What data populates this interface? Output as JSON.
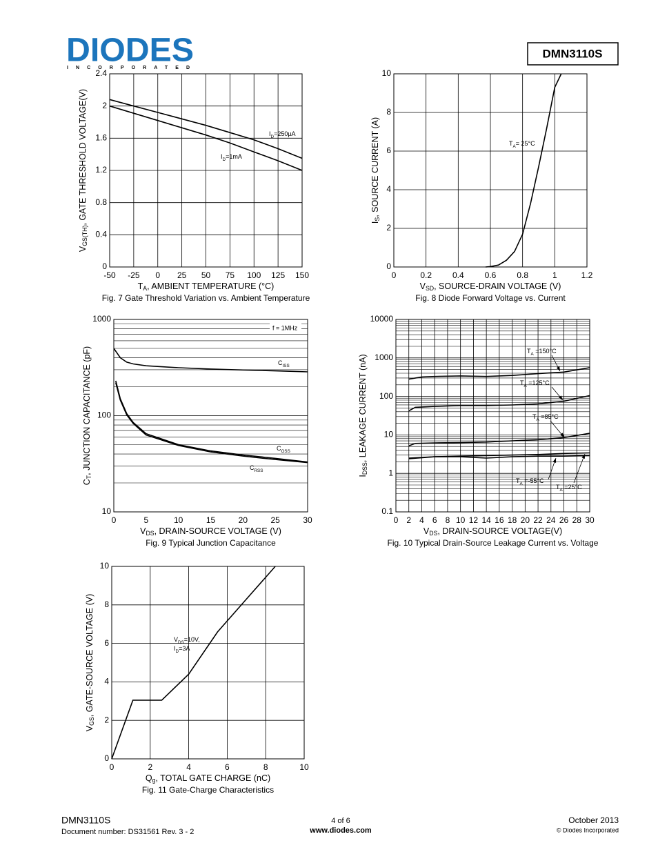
{
  "header": {
    "logo": "DIODES",
    "logo_sub": "INCORPORATED",
    "part": "DMN3110S"
  },
  "footer": {
    "part": "DMN3110S",
    "doc": "Document number: DS31561 Rev. 3 - 2",
    "page": "4 of 6",
    "url": "www.diodes.com",
    "date": "October 2013",
    "copyright": "© Diodes Incorporated"
  },
  "chart_data": [
    {
      "type": "line",
      "caption": "Fig. 7 Gate Threshold Variation vs. Ambient Temperature",
      "xlabel": [
        "T",
        "A",
        ", AMBIENT TEMPERATURE (°C)"
      ],
      "ylabel": [
        "V",
        "GS(TH)",
        ", GATE THRESHOLD VOLTAGE(V)"
      ],
      "xlim": [
        -50,
        150
      ],
      "xticks": [
        -50,
        -25,
        0,
        25,
        50,
        75,
        100,
        125,
        150
      ],
      "ylim": [
        0,
        2.4
      ],
      "yticks": [
        0,
        0.4,
        0.8,
        1.2,
        1.6,
        2,
        2.4
      ],
      "xgrid": true,
      "ygrid": true,
      "series": [
        {
          "name": [
            "I",
            "D",
            "=250µA"
          ],
          "color": "#000000",
          "x": [
            -50,
            -25,
            0,
            25,
            50,
            75,
            100,
            125,
            150
          ],
          "values": [
            2.08,
            2.0,
            1.92,
            1.84,
            1.76,
            1.67,
            1.58,
            1.47,
            1.35
          ]
        },
        {
          "name": [
            "I",
            "D",
            "=1mA"
          ],
          "color": "#000000",
          "x": [
            -50,
            -25,
            0,
            25,
            50,
            75,
            100,
            125,
            150
          ],
          "values": [
            2.0,
            1.91,
            1.82,
            1.73,
            1.64,
            1.54,
            1.43,
            1.32,
            1.2
          ]
        }
      ]
    },
    {
      "type": "line",
      "caption": "Fig. 8 Diode Forward Voltage vs. Current",
      "xlabel": [
        "V",
        "SD",
        ", SOURCE-DRAIN VOLTAGE (V)"
      ],
      "ylabel": [
        "I",
        "S",
        ", SOURCE CURRENT (A)"
      ],
      "xlim": [
        0,
        1.2
      ],
      "xticks": [
        0,
        0.2,
        0.4,
        0.6,
        0.8,
        1,
        1.2
      ],
      "ylim": [
        0,
        10
      ],
      "yticks": [
        0,
        2,
        4,
        6,
        8,
        10
      ],
      "xgrid": true,
      "ygrid": true,
      "series": [
        {
          "name": [
            "T",
            "A",
            "= 25°C"
          ],
          "color": "#000000",
          "x": [
            0.57,
            0.6,
            0.65,
            0.7,
            0.75,
            0.8,
            0.85,
            0.9,
            0.95,
            1.0,
            1.04
          ],
          "values": [
            0,
            0.02,
            0.1,
            0.35,
            0.8,
            1.7,
            3.3,
            5.2,
            7.2,
            9.3,
            10
          ]
        }
      ]
    },
    {
      "type": "line",
      "caption": "Fig. 9 Typical Junction Capacitance",
      "annotation": "f = 1MHz",
      "xlabel": [
        "V",
        "DS",
        ", DRAIN-SOURCE VOLTAGE (V)"
      ],
      "ylabel": [
        "C",
        "T",
        ", JUNCTION CAPACITANCE (pF)"
      ],
      "xlim": [
        0,
        30
      ],
      "xticks": [
        0,
        5,
        10,
        15,
        20,
        25,
        30
      ],
      "ylim": [
        10,
        1000
      ],
      "yticks": [
        10,
        100,
        1000
      ],
      "yscale": "log",
      "xgrid": false,
      "ygrid": true,
      "series": [
        {
          "name": [
            "C",
            "ISS"
          ],
          "color": "#000000",
          "x": [
            0,
            1,
            2,
            3,
            5,
            10,
            15,
            20,
            25,
            30
          ],
          "values": [
            500,
            400,
            360,
            345,
            330,
            315,
            305,
            298,
            292,
            285
          ]
        },
        {
          "name": [
            "C",
            "OSS"
          ],
          "color": "#000000",
          "x": [
            0.3,
            1,
            2,
            3,
            5,
            10,
            15,
            20,
            25,
            30
          ],
          "values": [
            230,
            150,
            105,
            85,
            65,
            50,
            43,
            39,
            36,
            33
          ]
        },
        {
          "name": [
            "C",
            "RSS"
          ],
          "color": "#000000",
          "x": [
            0.3,
            1,
            2,
            3,
            5,
            10,
            15,
            20,
            25,
            30
          ],
          "values": [
            220,
            145,
            102,
            83,
            63,
            49,
            42,
            38,
            35,
            32.5
          ]
        }
      ]
    },
    {
      "type": "line",
      "caption": "Fig. 10 Typical Drain-Source Leakage Current vs. Voltage",
      "xlabel": [
        "V",
        "DS",
        ", DRAIN-SOURCE VOLTAGE(V)"
      ],
      "ylabel": [
        "I",
        "DSS",
        ", LEAKAGE CURRENT (nA)"
      ],
      "xlim": [
        0,
        30
      ],
      "xticks": [
        0,
        2,
        4,
        6,
        8,
        10,
        12,
        14,
        16,
        18,
        20,
        22,
        24,
        26,
        28,
        30
      ],
      "ylim": [
        0.1,
        10000
      ],
      "yticks": [
        0.1,
        1,
        10,
        100,
        1000,
        10000
      ],
      "yscale": "log",
      "xgrid": true,
      "ygrid": true,
      "series": [
        {
          "name": [
            "T",
            "A",
            " =150°C"
          ],
          "color": "#000000",
          "x": [
            2,
            4,
            6,
            10,
            14,
            18,
            22,
            26,
            30
          ],
          "values": [
            280,
            320,
            330,
            340,
            330,
            350,
            390,
            430,
            560
          ]
        },
        {
          "name": [
            "T",
            "A",
            " =125°C"
          ],
          "color": "#000000",
          "x": [
            2,
            3,
            6,
            10,
            14,
            18,
            22,
            26,
            30
          ],
          "values": [
            42,
            52,
            55,
            58,
            58,
            60,
            64,
            75,
            105
          ]
        },
        {
          "name": [
            "T",
            "A",
            " =85°C"
          ],
          "color": "#000000",
          "x": [
            2,
            3,
            6,
            10,
            14,
            18,
            22,
            26,
            30
          ],
          "values": [
            5.2,
            6,
            6.2,
            6.3,
            6.5,
            7,
            7.5,
            8.5,
            11
          ]
        },
        {
          "name": [
            "T",
            "A",
            " =-55°C"
          ],
          "color": "#000000",
          "x": [
            2,
            6,
            10,
            14,
            18,
            22,
            26,
            30
          ],
          "values": [
            2.4,
            2.7,
            2.7,
            2.5,
            2.7,
            2.8,
            2.8,
            2.9
          ]
        },
        {
          "name": [
            "T",
            "A",
            " =25°C"
          ],
          "color": "#000000",
          "x": [
            2,
            6,
            10,
            14,
            18,
            22,
            26,
            30
          ],
          "values": [
            2.5,
            2.7,
            2.8,
            2.9,
            3.0,
            3.1,
            3.3,
            3.4
          ]
        }
      ]
    },
    {
      "type": "line",
      "caption": "Fig. 11 Gate-Charge Characteristics",
      "annotation": [
        [
          "V",
          "DS",
          "=10V,"
        ],
        [
          "I",
          "D",
          "=3A"
        ]
      ],
      "xlabel": [
        "Q",
        "g",
        ", TOTAL GATE CHARGE (nC)"
      ],
      "ylabel": [
        "V",
        "GS",
        ", GATE-SOURCE VOLTAGE (V)"
      ],
      "xlim": [
        0,
        10
      ],
      "xticks": [
        0,
        2,
        4,
        6,
        8,
        10
      ],
      "ylim": [
        0,
        10
      ],
      "yticks": [
        0,
        2,
        4,
        6,
        8,
        10
      ],
      "xgrid": true,
      "ygrid": true,
      "series": [
        {
          "name": null,
          "color": "#000000",
          "x": [
            0,
            1.1,
            2.6,
            4,
            5.5,
            7,
            8.5
          ],
          "values": [
            0,
            3.05,
            3.05,
            4.4,
            6.6,
            8.3,
            10
          ]
        }
      ]
    }
  ]
}
